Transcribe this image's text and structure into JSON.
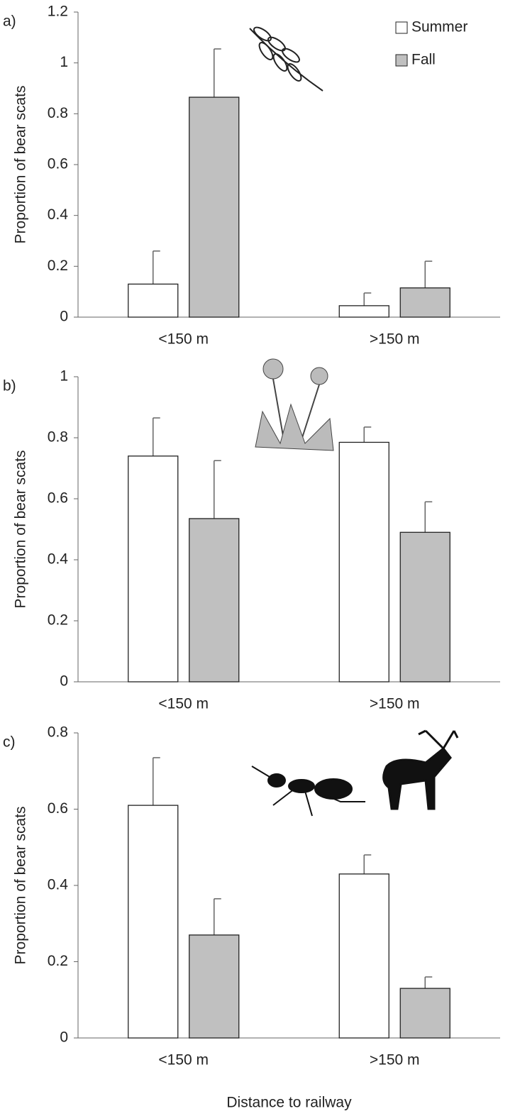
{
  "chart_data": [
    {
      "type": "bar",
      "panel_label": "a)",
      "y_label": "Proportion of bear scats",
      "categories": [
        "<150 m",
        ">150 m"
      ],
      "series": [
        {
          "name": "Summer",
          "color": "#ffffff",
          "values": [
            0.13,
            0.045
          ],
          "errors": [
            0.13,
            0.05
          ]
        },
        {
          "name": "Fall",
          "color": "#c0c0c0",
          "values": [
            0.865,
            0.115
          ],
          "errors": [
            0.19,
            0.105
          ]
        }
      ],
      "ylim": [
        0,
        1.2
      ],
      "yticks": [
        0,
        0.2,
        0.4,
        0.6,
        0.8,
        1,
        {
          "value": 1.2,
          "label": "1.2"
        }
      ],
      "legend": "upper right"
    },
    {
      "type": "bar",
      "panel_label": "b)",
      "y_label": "Proportion of bear scats",
      "categories": [
        "<150 m",
        ">150 m"
      ],
      "series": [
        {
          "color": "#ffffff",
          "values": [
            0.74,
            0.785
          ],
          "errors": [
            0.125,
            0.05
          ]
        },
        {
          "color": "#c0c0c0",
          "values": [
            0.535,
            0.49
          ],
          "errors": [
            0.19,
            0.1
          ]
        }
      ],
      "ylim": [
        0,
        1
      ],
      "yticks": [
        0,
        0.2,
        0.4,
        0.6,
        0.8,
        1
      ]
    },
    {
      "type": "bar",
      "panel_label": "c)",
      "y_label": "Proportion of bear scats",
      "x_label": "Distance to railway",
      "categories": [
        "<150 m",
        ">150 m"
      ],
      "series": [
        {
          "color": "#ffffff",
          "values": [
            0.61,
            0.43
          ],
          "errors": [
            0.125,
            0.05
          ]
        },
        {
          "color": "#c0c0c0",
          "values": [
            0.27,
            0.13
          ],
          "errors": [
            0.095,
            0.03
          ]
        }
      ],
      "ylim": [
        0,
        0.8
      ],
      "yticks": [
        0,
        0.2,
        0.4,
        0.6,
        0.8
      ]
    }
  ]
}
